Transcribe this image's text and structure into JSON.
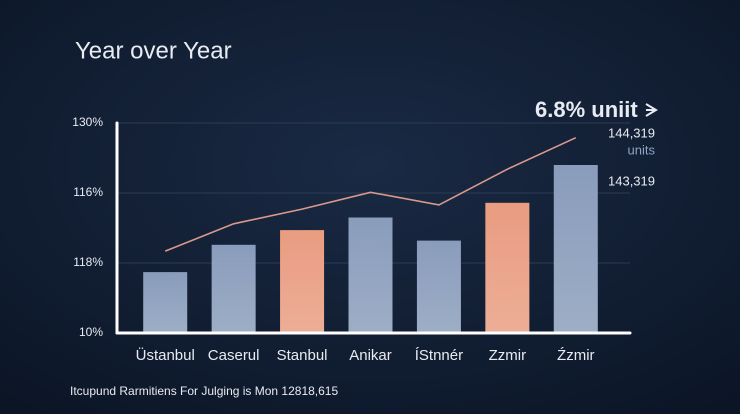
{
  "chart_data": {
    "type": "bar",
    "title": "Year over Year",
    "categories": [
      "Üstanbul",
      "Caserul",
      "Stanbul",
      "Anikar",
      "ÍStnnér",
      "Zzmir",
      "Źzmir"
    ],
    "series": [
      {
        "type": "bar",
        "values": [
          29,
          42,
          49,
          55,
          44,
          62,
          80
        ],
        "colors": [
          "#8fa3c2",
          "#8fa3c2",
          "#f4a385",
          "#8fa3c2",
          "#8fa3c2",
          "#f4a385",
          "#8fa3c2"
        ]
      },
      {
        "type": "line",
        "color": "#d99a8c",
        "values": [
          39,
          52,
          59,
          67,
          61,
          78,
          93
        ]
      }
    ],
    "ylim": [
      0,
      100
    ],
    "y_labels": [
      "130%",
      "116%",
      "118%",
      "10%"
    ],
    "grid": true,
    "annotations": {
      "headline": "6.8% uniit",
      "value_1": "144,319",
      "unit": "units",
      "value_2": "143,319"
    },
    "footnote": "Itcupund Rarmitiens For Julging is Mon 12818,615"
  }
}
